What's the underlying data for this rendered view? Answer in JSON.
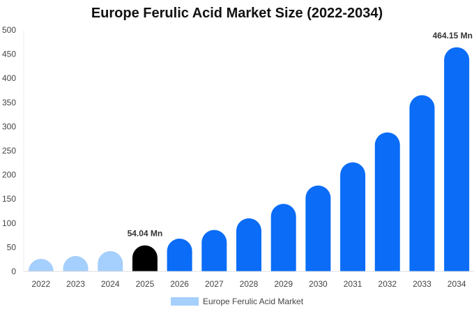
{
  "chart_data": {
    "type": "bar",
    "title": "Europe Ferulic Acid Market Size (2022-2034)",
    "categories": [
      "2022",
      "2023",
      "2024",
      "2025",
      "2026",
      "2027",
      "2028",
      "2029",
      "2030",
      "2031",
      "2032",
      "2033",
      "2034"
    ],
    "series": [
      {
        "name": "Europe Ferulic Acid Market",
        "values": [
          26,
          32,
          42,
          54.04,
          68,
          86,
          110,
          140,
          178,
          226,
          288,
          365,
          464.15
        ]
      }
    ],
    "ylim": [
      0,
      500
    ],
    "yticks": [
      0,
      50,
      100,
      150,
      200,
      250,
      300,
      350,
      400,
      450,
      500
    ],
    "data_labels": [
      {
        "category": "2025",
        "text": "54.04 Mn"
      },
      {
        "category": "2034",
        "text": "464.15 Mn"
      }
    ],
    "colors": {
      "past": "#a5cffc",
      "current": "#000000",
      "forecast": "#0a6cf7",
      "legend": "#a5cffc"
    },
    "category_colors": [
      "past",
      "past",
      "past",
      "current",
      "forecast",
      "forecast",
      "forecast",
      "forecast",
      "forecast",
      "forecast",
      "forecast",
      "forecast",
      "forecast"
    ],
    "grid": false,
    "legend_position": "bottom"
  }
}
